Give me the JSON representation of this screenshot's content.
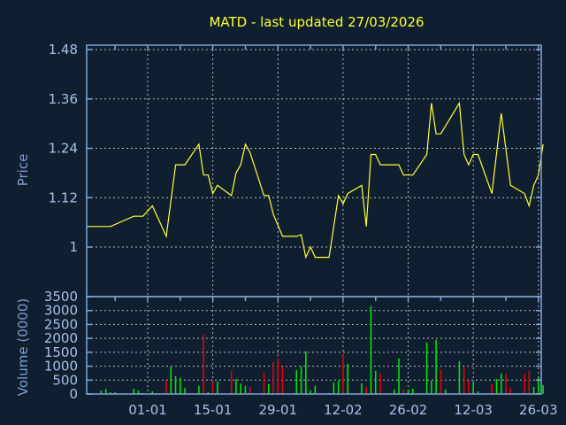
{
  "chart_data": [
    {
      "type": "line",
      "title": "MATD - last updated 27/03/2026",
      "ylabel": "Price",
      "ylim": [
        0.88,
        1.49
      ],
      "yticks": [
        1,
        1.12,
        1.24,
        1.36,
        1.48
      ],
      "ytick_labels": [
        "1",
        "1.12",
        "1.24",
        "1.36",
        "1.48"
      ],
      "grid": true,
      "colors": {
        "line": "#ffff33",
        "axis": "#7fa6d9",
        "background": "#0f1f30"
      },
      "series": [
        {
          "dates": [
            "2025-12-19",
            "2025-12-24",
            "2025-12-29",
            "2025-12-31",
            "2026-01-02",
            "2026-01-05",
            "2026-01-07",
            "2026-01-09",
            "2026-01-12",
            "2026-01-13",
            "2026-01-14",
            "2026-01-15",
            "2026-01-16",
            "2026-01-19",
            "2026-01-20",
            "2026-01-21",
            "2026-01-22",
            "2026-01-23",
            "2026-01-26",
            "2026-01-27",
            "2026-01-28",
            "2026-01-30",
            "2026-02-02",
            "2026-02-03",
            "2026-02-04",
            "2026-02-05",
            "2026-02-06",
            "2026-02-09",
            "2026-02-11",
            "2026-02-12",
            "2026-02-13",
            "2026-02-16",
            "2026-02-17",
            "2026-02-18",
            "2026-02-19",
            "2026-02-20",
            "2026-02-24",
            "2026-02-25",
            "2026-02-27",
            "2026-03-02",
            "2026-03-03",
            "2026-03-04",
            "2026-03-05",
            "2026-03-09",
            "2026-03-10",
            "2026-03-11",
            "2026-03-12",
            "2026-03-13",
            "2026-03-16",
            "2026-03-18",
            "2026-03-20",
            "2026-03-23",
            "2026-03-24",
            "2026-03-25",
            "2026-03-26",
            "2026-03-27"
          ],
          "values": [
            1.05,
            1.05,
            1.075,
            1.075,
            1.1,
            1.026,
            1.2,
            1.2,
            1.25,
            1.175,
            1.175,
            1.13,
            1.15,
            1.125,
            1.18,
            1.2,
            1.25,
            1.23,
            1.125,
            1.125,
            1.08,
            1.026,
            1.026,
            1.03,
            0.975,
            1.0,
            0.975,
            0.975,
            1.125,
            1.105,
            1.13,
            1.15,
            1.05,
            1.225,
            1.225,
            1.2,
            1.2,
            1.175,
            1.175,
            1.225,
            1.35,
            1.275,
            1.275,
            1.35,
            1.225,
            1.2,
            1.225,
            1.225,
            1.13,
            1.325,
            1.15,
            1.13,
            1.1,
            1.15,
            1.175,
            1.25
          ]
        }
      ]
    },
    {
      "type": "bar",
      "ylabel": "Volume (0000)",
      "ylim": [
        0,
        3500
      ],
      "yticks": [
        0,
        500,
        1000,
        1500,
        2000,
        2500,
        3000,
        3500
      ],
      "ytick_labels": [
        "0",
        "500",
        "1000",
        "1500",
        "2000",
        "2500",
        "3000",
        "3500"
      ],
      "xtick_labels": [
        "01-01",
        "15-01",
        "29-01",
        "12-02",
        "26-02",
        "12-03",
        "26-03"
      ],
      "xtick_dates": [
        "2026-01-01",
        "2026-01-15",
        "2026-01-29",
        "2026-02-12",
        "2026-02-26",
        "2026-03-12",
        "2026-03-26"
      ],
      "grid": true,
      "colors": {
        "up": "#00ee00",
        "down": "#ee0000"
      },
      "bars": [
        [
          "2025-12-22",
          128,
          "up"
        ],
        [
          "2025-12-23",
          180,
          "up"
        ],
        [
          "2025-12-24",
          64,
          "up"
        ],
        [
          "2025-12-25",
          64,
          "up"
        ],
        [
          "2025-12-29",
          190,
          "up"
        ],
        [
          "2025-12-30",
          128,
          "up"
        ],
        [
          "2025-12-31",
          32,
          "up"
        ],
        [
          "2026-01-02",
          96,
          "up"
        ],
        [
          "2026-01-05",
          500,
          "down"
        ],
        [
          "2026-01-06",
          990,
          "up"
        ],
        [
          "2026-01-07",
          640,
          "up"
        ],
        [
          "2026-01-08",
          575,
          "up"
        ],
        [
          "2026-01-09",
          220,
          "up"
        ],
        [
          "2026-01-12",
          290,
          "up"
        ],
        [
          "2026-01-13",
          2140,
          "down"
        ],
        [
          "2026-01-14",
          64,
          "up"
        ],
        [
          "2026-01-15",
          450,
          "down"
        ],
        [
          "2026-01-16",
          450,
          "up"
        ],
        [
          "2026-01-19",
          830,
          "down"
        ],
        [
          "2026-01-20",
          540,
          "up"
        ],
        [
          "2026-01-21",
          370,
          "up"
        ],
        [
          "2026-01-22",
          290,
          "up"
        ],
        [
          "2026-01-23",
          255,
          "down"
        ],
        [
          "2026-01-26",
          765,
          "down"
        ],
        [
          "2026-01-27",
          350,
          "up"
        ],
        [
          "2026-01-28",
          1150,
          "down"
        ],
        [
          "2026-01-29",
          1280,
          "down"
        ],
        [
          "2026-01-30",
          990,
          "down"
        ],
        [
          "2026-02-02",
          860,
          "up"
        ],
        [
          "2026-02-03",
          990,
          "up"
        ],
        [
          "2026-02-04",
          1530,
          "up"
        ],
        [
          "2026-02-05",
          128,
          "up"
        ],
        [
          "2026-02-06",
          290,
          "up"
        ],
        [
          "2026-02-09",
          32,
          "up"
        ],
        [
          "2026-02-10",
          415,
          "up"
        ],
        [
          "2026-02-11",
          480,
          "up"
        ],
        [
          "2026-02-12",
          1415,
          "down"
        ],
        [
          "2026-02-13",
          1085,
          "up"
        ],
        [
          "2026-02-16",
          383,
          "up"
        ],
        [
          "2026-02-17",
          255,
          "down"
        ],
        [
          "2026-02-18",
          3160,
          "up"
        ],
        [
          "2026-02-19",
          830,
          "up"
        ],
        [
          "2026-02-20",
          735,
          "down"
        ],
        [
          "2026-02-23",
          160,
          "up"
        ],
        [
          "2026-02-24",
          1280,
          "up"
        ],
        [
          "2026-02-25",
          160,
          "down"
        ],
        [
          "2026-02-26",
          160,
          "up"
        ],
        [
          "2026-02-27",
          190,
          "up"
        ],
        [
          "2026-03-02",
          1850,
          "up"
        ],
        [
          "2026-03-03",
          480,
          "up"
        ],
        [
          "2026-03-04",
          1950,
          "up"
        ],
        [
          "2026-03-05",
          860,
          "down"
        ],
        [
          "2026-03-06",
          160,
          "up"
        ],
        [
          "2026-03-09",
          1180,
          "up"
        ],
        [
          "2026-03-10",
          960,
          "down"
        ],
        [
          "2026-03-11",
          480,
          "down"
        ],
        [
          "2026-03-12",
          415,
          "up"
        ],
        [
          "2026-03-13",
          96,
          "up"
        ],
        [
          "2026-03-16",
          350,
          "down"
        ],
        [
          "2026-03-17",
          540,
          "up"
        ],
        [
          "2026-03-18",
          735,
          "up"
        ],
        [
          "2026-03-19",
          735,
          "down"
        ],
        [
          "2026-03-20",
          220,
          "down"
        ],
        [
          "2026-03-23",
          735,
          "down"
        ],
        [
          "2026-03-24",
          830,
          "down"
        ],
        [
          "2026-03-25",
          255,
          "up"
        ],
        [
          "2026-03-26",
          600,
          "up"
        ],
        [
          "2026-03-27",
          320,
          "up"
        ]
      ]
    }
  ]
}
